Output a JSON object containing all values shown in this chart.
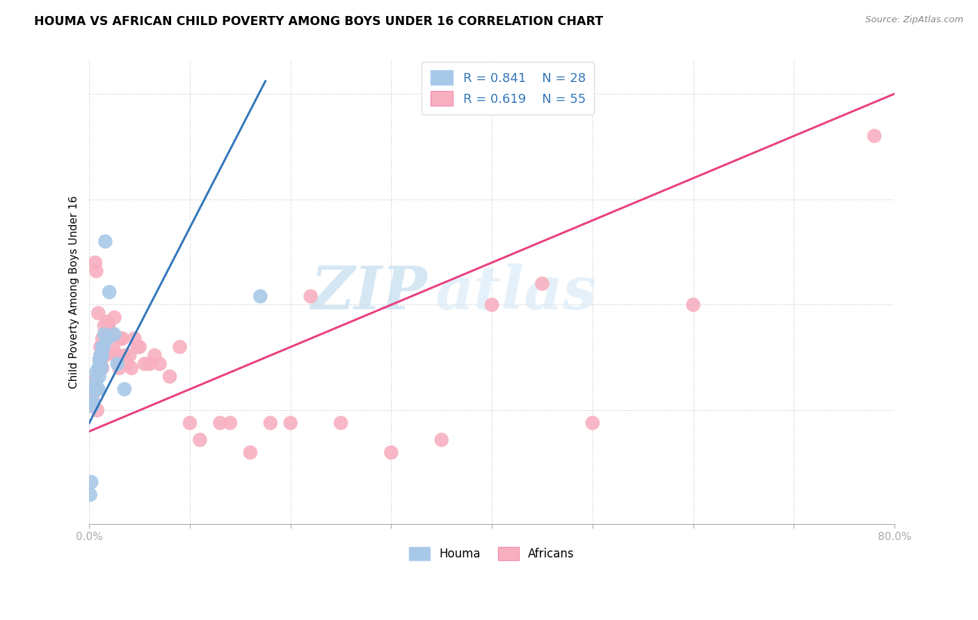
{
  "title": "HOUMA VS AFRICAN CHILD POVERTY AMONG BOYS UNDER 16 CORRELATION CHART",
  "source": "Source: ZipAtlas.com",
  "ylabel": "Child Poverty Among Boys Under 16",
  "xlim": [
    0.0,
    0.8
  ],
  "ylim": [
    -0.02,
    1.08
  ],
  "houma_R": 0.841,
  "houma_N": 28,
  "africans_R": 0.619,
  "africans_N": 55,
  "houma_color": "#a8c8e8",
  "africans_color": "#f8b0c0",
  "houma_line_color": "#3377bb",
  "africans_line_color": "#e84080",
  "watermark_zip": "ZIP",
  "watermark_atlas": "atlas",
  "houma_x": [
    0.001,
    0.002,
    0.003,
    0.004,
    0.005,
    0.006,
    0.007,
    0.007,
    0.008,
    0.009,
    0.009,
    0.01,
    0.01,
    0.011,
    0.011,
    0.012,
    0.012,
    0.013,
    0.013,
    0.014,
    0.015,
    0.016,
    0.018,
    0.02,
    0.025,
    0.028,
    0.035,
    0.17
  ],
  "houma_y": [
    0.05,
    0.08,
    0.26,
    0.27,
    0.3,
    0.3,
    0.32,
    0.34,
    0.3,
    0.3,
    0.35,
    0.33,
    0.37,
    0.36,
    0.38,
    0.35,
    0.38,
    0.38,
    0.4,
    0.4,
    0.43,
    0.65,
    0.42,
    0.53,
    0.43,
    0.36,
    0.3,
    0.52
  ],
  "africans_x": [
    0.003,
    0.005,
    0.006,
    0.007,
    0.008,
    0.009,
    0.01,
    0.011,
    0.012,
    0.013,
    0.013,
    0.014,
    0.015,
    0.016,
    0.017,
    0.018,
    0.019,
    0.02,
    0.022,
    0.024,
    0.025,
    0.027,
    0.028,
    0.03,
    0.032,
    0.033,
    0.035,
    0.038,
    0.04,
    0.042,
    0.045,
    0.048,
    0.05,
    0.055,
    0.06,
    0.065,
    0.07,
    0.08,
    0.09,
    0.1,
    0.11,
    0.13,
    0.14,
    0.16,
    0.18,
    0.2,
    0.22,
    0.25,
    0.3,
    0.35,
    0.4,
    0.45,
    0.5,
    0.6,
    0.78
  ],
  "africans_y": [
    0.28,
    0.32,
    0.6,
    0.58,
    0.25,
    0.48,
    0.35,
    0.4,
    0.38,
    0.42,
    0.35,
    0.38,
    0.45,
    0.38,
    0.42,
    0.46,
    0.45,
    0.44,
    0.43,
    0.4,
    0.47,
    0.38,
    0.38,
    0.35,
    0.42,
    0.42,
    0.38,
    0.36,
    0.38,
    0.35,
    0.42,
    0.4,
    0.4,
    0.36,
    0.36,
    0.38,
    0.36,
    0.33,
    0.4,
    0.22,
    0.18,
    0.22,
    0.22,
    0.15,
    0.22,
    0.22,
    0.52,
    0.22,
    0.15,
    0.18,
    0.5,
    0.55,
    0.22,
    0.5,
    0.9
  ]
}
